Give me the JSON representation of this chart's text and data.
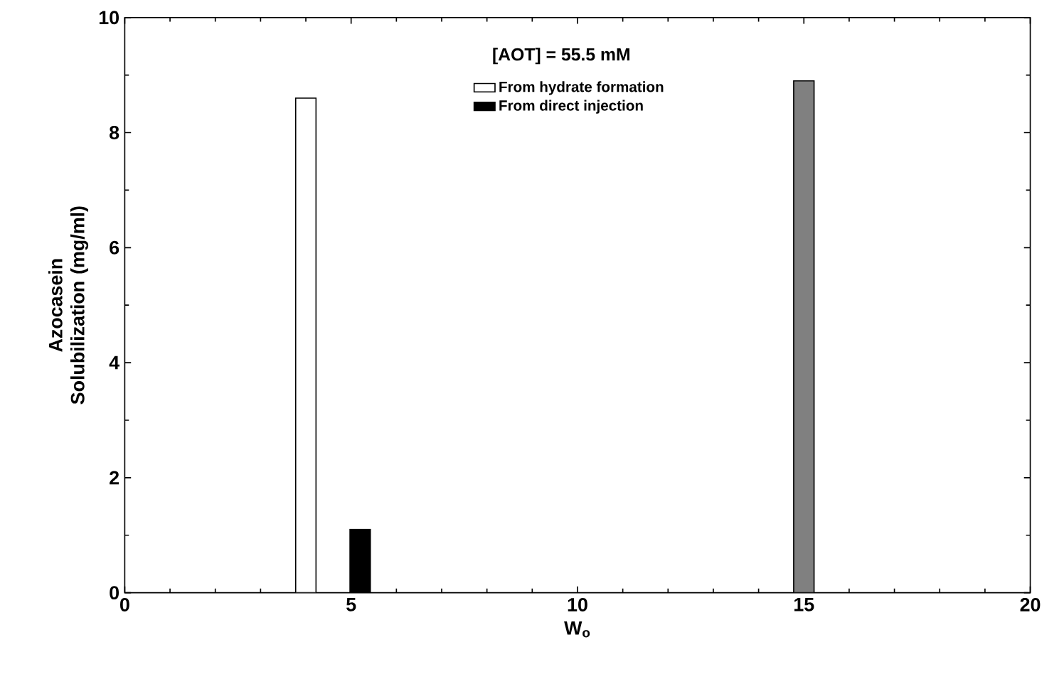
{
  "chart_data": {
    "type": "bar",
    "xlabel": "W$_{o}$",
    "ylabel": "Azocasein Solubilization (mg/ml)",
    "annotations": [
      "[AOT] = 55.5 mM"
    ],
    "xlim": [
      0,
      20
    ],
    "xticks": [
      0,
      5,
      10,
      15,
      20
    ],
    "ylim": [
      0,
      10
    ],
    "yticks": [
      0,
      2,
      4,
      6,
      8,
      10
    ],
    "legend": "top right",
    "grid": false,
    "series": [
      {
        "name": "From hydrate formation",
        "color": "#ffffff",
        "x": [
          4.0
        ],
        "values": [
          8.6
        ]
      },
      {
        "name": "From direct injection",
        "color": "#000000",
        "x": [
          5.2
        ],
        "values": [
          1.1
        ]
      },
      {
        "color": "#808080",
        "x": [
          15.0
        ],
        "values": [
          8.9
        ]
      }
    ]
  }
}
